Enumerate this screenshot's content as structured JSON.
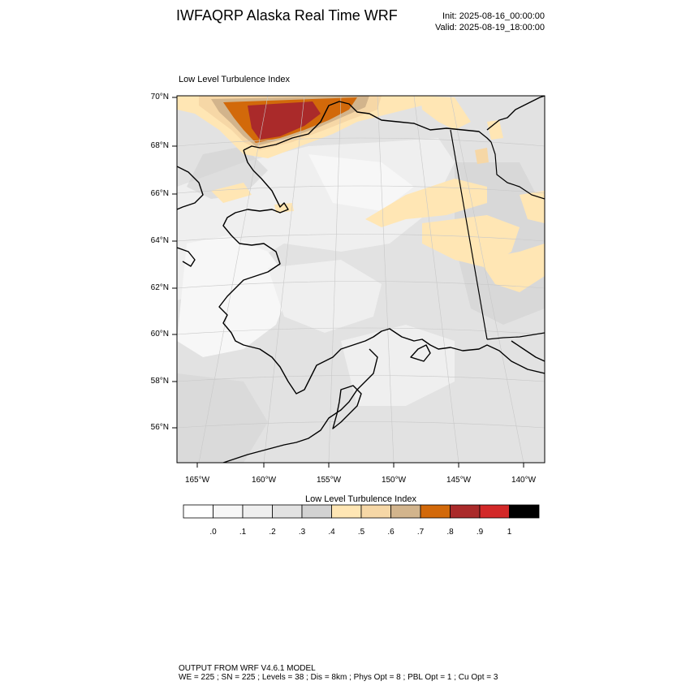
{
  "header": {
    "title": "IWFAQRP Alaska Real Time WRF",
    "init": "Init: 2025-08-16_00:00:00",
    "valid": "Valid: 2025-08-19_18:00:00"
  },
  "map": {
    "title": "Low Level Turbulence Index",
    "lat_labels": [
      "70°N",
      "68°N",
      "66°N",
      "64°N",
      "62°N",
      "60°N",
      "58°N",
      "56°N"
    ],
    "lon_labels": [
      "165°W",
      "160°W",
      "155°W",
      "150°W",
      "145°W",
      "140°W"
    ],
    "colors": {
      "background": "#e2e2e2",
      "coast": "#000000",
      "grid": "#c8c8c8"
    }
  },
  "colorbar": {
    "title": "Low Level Turbulence Index",
    "colors": [
      "#ffffff",
      "#f7f7f7",
      "#efefef",
      "#e2e2e2",
      "#d2d2d2",
      "#ffe6b4",
      "#f6d7a6",
      "#d2b48c",
      "#d2690a",
      "#aa2a2a",
      "#d22828",
      "#000000"
    ],
    "labels": [
      ".0",
      ".1",
      ".2",
      ".3",
      ".4",
      ".5",
      ".6",
      ".7",
      ".8",
      ".9",
      "1"
    ]
  },
  "footer": {
    "line1": "OUTPUT FROM WRF V4.6.1 MODEL",
    "line2": "WE = 225 ; SN = 225 ; Levels = 38 ; Dis = 8km ; Phys Opt = 8 ; PBL Opt = 1 ; Cu Opt = 3"
  }
}
